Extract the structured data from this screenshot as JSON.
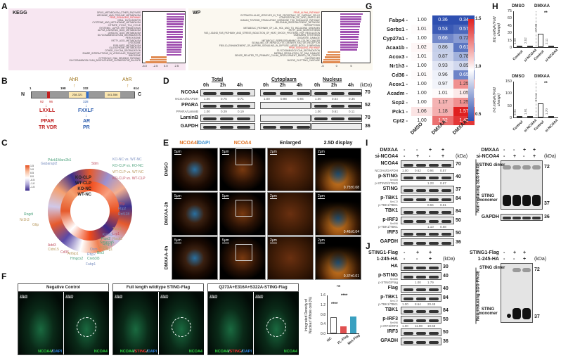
{
  "panels": {
    "A": {
      "label": "A",
      "kegg": {
        "title": "KEGG",
        "terms": [
          "DRUG_METABOLISM_OTHER_ENZYMES",
          "ARGININE_AND_PROLINE_METABOLISM",
          "PPAR_SIGNALING_PATHWAY",
          "VIRAL_MYOCARDITIS",
          "CYSTEINE_AND_METHIONINE_METABOLISM",
          "CITRATE_CYCLE_TCA_CYCLE",
          "SYSTEMIC_LUPUS_ERYTHEMATOSUS",
          "ALPHA_LINOLENIC_ACID_METABOLISM",
          "LINOLEIC_ACID_METABOLISM",
          "GLYCOSAMINOGLYCAN_DEGRADATION",
          "PEROXISOME",
          "FATTY_ACID_METABOLISM",
          "LYSOSOME",
          "PYRUVATE_METABOLISM",
          "GLUTATHIONE_METABOLISM",
          "OTHER_GLYCAN_DEGRADATION",
          "SNARE_INTERACTIONS_IN_VESICULAR_TRANSPORT",
          "RIBOSOME",
          "CYTOSOLIC_DNA_SENSING_PATHWAY",
          "GLYCOSAMINOGLYCAN_BIOSYNTHESIS_CHONDROITIN_SULFATE"
        ],
        "highlight": "PPAR_SIGNALING_PATHWAY",
        "xticks": [
          "-5.0",
          "-2.5",
          "0.0",
          "2.5"
        ]
      },
      "wp": {
        "title": "WP",
        "terms": [
          "PPAR_ALPHA_PATHWAY",
          "EXTRACELLULAR_VESICLES_IN_THE_CROSSTALK_OF_CARDIAC_CELLS",
          "COMPOSITION_OF_LIPID_PARTICLES",
          "HUMAN_THYROID_STIMULATING_HORMONE_TSH_SIGNALING_PATHWAY",
          "SELENIUM_MICRONUTRIENT_NETWORK",
          "FERROPTOSIS",
          "METABOLIC_PATHWAY_OF_LDL_HDL_AND_TG_INCLUDING_DISEASES",
          "FATTY_ACID_BIOSYNTHESIS",
          "FAS_LIGAND_FAS_PATHWAY_AND_STRESS_INDUCTION_OF_HEAT_SHOCK_PROTEINS_HSP_REGULATION",
          "OMEGA9FA_SYNTHESIS",
          "OXIDATIVE_DAMAGE",
          "METABOLIC_REPROGRAMMING_IN_COLON_CANCER",
          "SIGNALING_OF_HEPATOCYTE_GROWTH_FACTOR_RECEPTOR",
          "FBXL10_ENHANCEMENT_OF_MAPERK_SIGNALING_IN_DIFFUSE_LARGE_BCELL_LYMPHOMA",
          "PPAR_SIGNALING_PATHWAY",
          "GLYCOSAMINOGLYCAN_DEGRADATION",
          "MIRRNA_REGULATION_OF_DNA_DAMAGE",
          "GENES_RELATED_TO_PRIMARY_CILIUM_DEVELOPMENT_BASED_ON_CRISPR",
          "CILIOPATHIES",
          "BLOOD_CLOTTING_CASCADE"
        ],
        "highlight": [
          "PPAR_ALPHA_PATHWAY",
          "PPAR_SIGNALING_PATHWAY"
        ],
        "xticks": [
          "-5",
          "0",
          "5"
        ]
      }
    },
    "B": {
      "label": "B",
      "n": "N",
      "c": "C",
      "positions": [
        "1",
        "198",
        "332",
        "614"
      ],
      "ahr1": "AhR",
      "ahr2": "AhR",
      "box1": "238-321",
      "box2": "441-556",
      "red_pos": [
        "92",
        "96"
      ],
      "blue_pos": "328",
      "motif_red": "LXXLL",
      "targets_red": [
        "PPAR",
        "TR VDR"
      ],
      "motif_blue": "FXXLF",
      "targets_blue": [
        "AR",
        "PR"
      ]
    },
    "C": {
      "label": "C",
      "legend_ticks": [
        "1.5",
        "1.0",
        "0.5",
        "0.0",
        "-0.5",
        "-1.0",
        "-1.5"
      ],
      "rings": [
        "KO-CLP",
        "WT-CLP",
        "KO-NC",
        "WT-NC"
      ],
      "comparisons": [
        {
          "text": "KO-NC vs. WT-NC",
          "color": "#7a8fc0"
        },
        {
          "text": "KO-CLP vs. KO-NC",
          "color": "#4aa07a"
        },
        {
          "text": "WT-CLP vs. WT-NC",
          "color": "#b99a60"
        },
        {
          "text": "KO-CLP vs. WT-CLP",
          "color": "#c05060"
        }
      ],
      "genes": [
        "Pdzk1",
        "Marc2b1",
        "Gabarapl2",
        "Stim",
        "Mttp",
        "Fbp2",
        "Rnf128",
        "Rogdi",
        "Nr1h3",
        "Gltp",
        "Tacc1",
        "Lrp1",
        "Rock2",
        "Rrbp1",
        "Eif4g1",
        "Add3",
        "Cldn15",
        "Cd36",
        "Arl6ip1",
        "Hmgcs2",
        "Creb3l3",
        "Fabp1",
        "Rbp2",
        "Oxm",
        "Bin3",
        "Vegfa",
        "Smarca5",
        "Ptpn2",
        "Kpna1"
      ]
    },
    "D": {
      "label": "D",
      "groups": [
        "Total",
        "Cytoplasm",
        "Nucleus"
      ],
      "times": [
        "0h",
        "2h",
        "4h",
        "0h",
        "2h",
        "4h",
        "0h",
        "2h",
        "4h"
      ],
      "kda_label": "(kDa)",
      "rows": [
        {
          "name": "NCOA4",
          "kda": "70",
          "ratio_label": "NCOA4/GAPDH",
          "ratios": [
            "1.00",
            "0.75",
            "0.71",
            "1.00",
            "0.98",
            "0.94",
            "1.00",
            "0.54",
            "0.36"
          ]
        },
        {
          "name": "PPARA",
          "kda": "52",
          "ratio_label": "PPARA/LaminB",
          "ratios": [
            "1.00",
            "0.29",
            "0.19",
            "",
            "",
            "",
            "1.00",
            "0.61",
            "0.11"
          ]
        },
        {
          "name": "LaminB",
          "kda": "70"
        },
        {
          "name": "GAPDH",
          "kda": "36"
        }
      ]
    },
    "E": {
      "label": "E",
      "columns": [
        "NCOA4/DAPI",
        "NCOA4",
        "Enlarged",
        "2.5D display"
      ],
      "rows": [
        {
          "name": "DMSO",
          "value": "0.75±0.08"
        },
        {
          "name": "DMXAA-2h",
          "value": "0.46±0.04"
        },
        {
          "name": "DMXAA-4h",
          "value": "0.37±0.01"
        }
      ],
      "scale5": "5μm",
      "scale2": "2μm"
    },
    "F": {
      "label": "F",
      "groups": [
        {
          "title": "Negative Control",
          "labels": [
            "NCOA4/DAPI",
            "NCOA4"
          ]
        },
        {
          "title": "Full length wildtype STING-Flag",
          "labels": [
            "NCOA4/STING/DAPI",
            "NCOA4"
          ]
        },
        {
          "title": "Q273A+E316A+S322A-STING-Flag",
          "labels": [
            "NCOA4/STING/DAPI",
            "NCOA4"
          ]
        }
      ],
      "scale": "10μm"
    },
    "G": {
      "label": "G",
      "legend_ticks": [
        "1.5",
        "1.0",
        "0.5"
      ]
    },
    "H": {
      "label": "H",
      "header": [
        "DMSO",
        "DMXAA"
      ]
    },
    "I": {
      "label": "I",
      "treatments": [
        {
          "name": "DMXAA",
          "values": [
            "-",
            "-",
            "+",
            "+"
          ]
        },
        {
          "name": "si-NCOA4",
          "values": [
            "-",
            "+",
            "-",
            "+"
          ]
        }
      ],
      "kda_label": "(kDa)",
      "rows": [
        {
          "name": "NCOA4",
          "kda": "70",
          "ratio_label": "NCOA4/GAPDH",
          "ratios": [
            "1.00",
            "0.62",
            "0.94",
            "0.57"
          ]
        },
        {
          "name": "p-STING",
          "sub": "Ser365",
          "kda": "40",
          "ratio_label": "p-STING/STING",
          "ratios": [
            "",
            "",
            "1.23",
            "0.67"
          ]
        },
        {
          "name": "STING",
          "kda": "37"
        },
        {
          "name": "p-TBK1",
          "sub": "Ser172",
          "kda": "84",
          "ratio_label": "p-TBK1/TBK1",
          "ratios": [
            "",
            "",
            "0.94",
            "0.61"
          ]
        },
        {
          "name": "TBK1",
          "kda": "84"
        },
        {
          "name": "p-IRF3",
          "sub": "Ser396",
          "kda": "50",
          "ratio_label": "p-TBK1/TBK1",
          "ratios": [
            "",
            "",
            "1.10",
            "0.68"
          ]
        },
        {
          "name": "IRF3",
          "kda": "50"
        },
        {
          "name": "GAPDH",
          "kda": "36"
        }
      ],
      "nonreducing": {
        "side_label": "Non-reducing SDS-PAGE",
        "dimer": "STING dimer",
        "monomer": "STING monomer",
        "gapdh": "GAPDH",
        "kda": [
          "72",
          "37",
          "36"
        ]
      }
    },
    "J": {
      "label": "J",
      "treatments": [
        {
          "name": "STING1-Flag",
          "values": [
            "-",
            "+",
            "+"
          ]
        },
        {
          "name": "1-245-HA",
          "values": [
            "-",
            "-",
            "+"
          ]
        }
      ],
      "kda_label": "(kDa)",
      "rows": [
        {
          "name": "HA",
          "kda": "30"
        },
        {
          "name": "p-STING",
          "sub": "Ser366",
          "kda": "40",
          "ratio_label": "p-STING/Flag",
          "ratios": [
            "",
            "1.00",
            "1.79"
          ]
        },
        {
          "name": "Flag",
          "kda": "40"
        },
        {
          "name": "p-TBK1",
          "sub": "Ser172",
          "kda": "84",
          "ratio_label": "p-TBK1/TBK1",
          "ratios": [
            "1.00",
            "8.64",
            "20.48"
          ]
        },
        {
          "name": "TBK1",
          "kda": "84"
        },
        {
          "name": "p-IRF3",
          "sub": "Ser396",
          "kda": "50",
          "ratio_label": "p-IRF3/IRF3",
          "ratios": [
            "1.00",
            "11.98",
            "19.58"
          ]
        },
        {
          "name": "IRF3",
          "kda": "50"
        },
        {
          "name": "GPADH",
          "kda": "36"
        }
      ],
      "nonreducing": {
        "side_label": "Non-reducing SDS-PAGE",
        "dimer": "STING dimer",
        "monomer": "STING monomer",
        "kda": [
          "72",
          "37"
        ]
      }
    }
  },
  "chart_data": [
    {
      "id": "G",
      "type": "heatmap",
      "rows": [
        "Fabp4",
        "Sorbs1",
        "Cyp27a1",
        "Acaa1b",
        "Acox3",
        "Nr1h3",
        "Cd36",
        "Acox1",
        "Acadm",
        "Scp2",
        "Pck1",
        "Cpt2"
      ],
      "columns": [
        "DMSO",
        "DMXAA",
        "DMXAA+FA"
      ],
      "values": [
        [
          1.0,
          0.36,
          0.34
        ],
        [
          1.01,
          0.53,
          0.57
        ],
        [
          1.0,
          0.66,
          0.72
        ],
        [
          1.02,
          0.86,
          0.61
        ],
        [
          1.01,
          0.87,
          0.78
        ],
        [
          1.0,
          0.93,
          0.89
        ],
        [
          1.01,
          0.96,
          0.65
        ],
        [
          1.0,
          0.97,
          1.25
        ],
        [
          1.0,
          1.01,
          1.05
        ],
        [
          1.0,
          1.17,
          1.25
        ],
        [
          1.06,
          1.18,
          1.57
        ],
        [
          1.0,
          1.32,
          1.45
        ]
      ],
      "colorbar": {
        "min": 0.5,
        "mid": 1.0,
        "max": 1.5,
        "low_color": "#2e4fb0",
        "mid_color": "#ffffff",
        "high_color": "#e02020"
      }
    },
    {
      "id": "H-top",
      "type": "bar",
      "categories": [
        "Control",
        "si-NCOA4",
        "Control",
        "si-NCOA4"
      ],
      "groups": [
        "DMSO",
        "DMSO",
        "DMXAA",
        "DMXAA"
      ],
      "values": [
        1.08,
        2.52,
        27.8,
        2.11
      ],
      "ylabel": "Ifnb mRNA (Fold change)",
      "ylim": [
        0,
        75
      ],
      "yticks": [
        0,
        15,
        30,
        45,
        60,
        75
      ],
      "significance": "**"
    },
    {
      "id": "H-bottom",
      "type": "bar",
      "categories": [
        "Control",
        "si-NCOA4",
        "Control",
        "si-NCOA4"
      ],
      "groups": [
        "DMSO",
        "DMSO",
        "DMXAA",
        "DMXAA"
      ],
      "values": [
        0.94,
        1.91,
        57.44,
        1.7
      ],
      "ylabel": "Il-6 mRNA (Fold change)",
      "ylim": [
        0,
        150
      ],
      "yticks": [
        0,
        50,
        100,
        150
      ],
      "significance": "**"
    },
    {
      "id": "F-quant",
      "type": "bar",
      "categories": [
        "NC",
        "FL-Flag",
        "Mut-Flag"
      ],
      "values": [
        0.68,
        0.28,
        0.7
      ],
      "colors": [
        "#ffffff",
        "#e05050",
        "#3aa0c0"
      ],
      "ylabel": "Integrated Density of Nuclear/ Whole cell (%)",
      "ylim": [
        0,
        1.6
      ],
      "yticks": [
        0.0,
        0.4,
        0.8,
        1.2,
        1.6
      ],
      "significance": [
        {
          "pair": [
            "NC",
            "FL-Flag"
          ],
          "label": "****"
        },
        {
          "pair": [
            "FL-Flag",
            "Mut-Flag"
          ],
          "label": "****"
        },
        {
          "pair": [
            "NC",
            "Mut-Flag"
          ],
          "label": "ns"
        }
      ]
    },
    {
      "id": "A-KEGG",
      "type": "bar",
      "orientation": "horizontal",
      "values": [
        3.8,
        3.7,
        3.6,
        3.5,
        3.45,
        3.4,
        3.4,
        3.35,
        3.3,
        3.3,
        3.25,
        3.2,
        3.2,
        3.15,
        3.1,
        3.1,
        3.0,
        -3.2,
        -3.5,
        -4.4
      ],
      "xlim": [
        -5,
        3.8
      ]
    },
    {
      "id": "A-WP",
      "type": "bar",
      "orientation": "horizontal",
      "values": [
        8.5,
        8.0,
        7.8,
        7.6,
        7.5,
        7.3,
        7.2,
        7.1,
        7.0,
        6.9,
        6.8,
        6.7,
        6.6,
        6.5,
        6.3,
        -5.0,
        -5.5,
        -6.0,
        -6.5,
        -6.8
      ],
      "xlim": [
        -7,
        9
      ]
    }
  ]
}
